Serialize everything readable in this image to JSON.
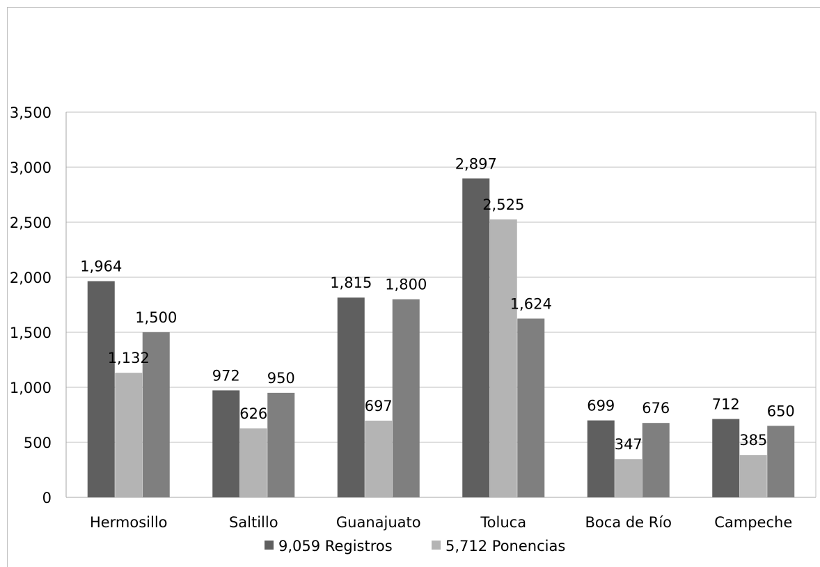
{
  "chart_data": {
    "type": "bar",
    "categories": [
      "Hermosillo",
      "Saltillo",
      "Guanajuato",
      "Toluca",
      "Boca de Río",
      "Campeche"
    ],
    "series": [
      {
        "name": "9,059 Registros",
        "color": "#5f5f5f",
        "values": [
          1964,
          972,
          1815,
          2897,
          699,
          712
        ]
      },
      {
        "name": "5,712 Ponencias",
        "color": "#b4b4b4",
        "values": [
          1132,
          626,
          697,
          2525,
          347,
          385
        ]
      },
      {
        "name": "",
        "color": "#7f7f7f",
        "values": [
          1500,
          950,
          1800,
          1624,
          676,
          650
        ]
      }
    ],
    "data_labels": [
      [
        "1,964",
        "972",
        "1,815",
        "2,897",
        "699",
        "712"
      ],
      [
        "1,132",
        "626",
        "697",
        "2,525",
        "347",
        "385"
      ],
      [
        "1,500",
        "950",
        "1,800",
        "1,624",
        "676",
        "650"
      ]
    ],
    "yticks": [
      0,
      500,
      1000,
      1500,
      2000,
      2500,
      3000,
      3500
    ],
    "ytick_labels": [
      "0",
      "500",
      "1,000",
      "1,500",
      "2,000",
      "2,500",
      "3,000",
      "3,500"
    ],
    "ylim": [
      0,
      3500
    ],
    "grid": true,
    "legend_position": "bottom",
    "legend": [
      "9,059 Registros",
      "5,712 Ponencias"
    ],
    "title": "",
    "xlabel": "",
    "ylabel": ""
  }
}
